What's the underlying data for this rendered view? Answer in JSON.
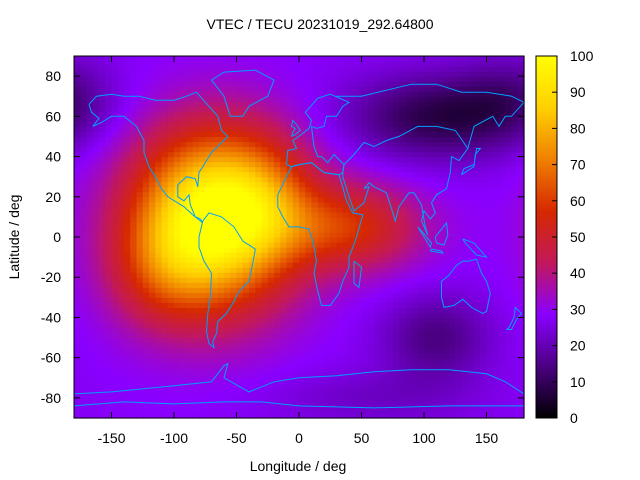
{
  "chart_data": {
    "type": "heatmap",
    "title": "VTEC / TECU 20231019_292.64800",
    "xlabel": "Longitude / deg",
    "ylabel": "Latitude / deg",
    "xlim": [
      -180,
      180
    ],
    "ylim": [
      -90,
      90
    ],
    "x_ticks": [
      -150,
      -100,
      -50,
      0,
      50,
      100,
      150
    ],
    "y_ticks": [
      -80,
      -60,
      -40,
      -20,
      0,
      20,
      40,
      60,
      80
    ],
    "colorbar": {
      "range": [
        0,
        100
      ],
      "ticks": [
        0,
        10,
        20,
        30,
        40,
        50,
        60,
        70,
        80,
        90,
        100
      ],
      "palette": [
        "#000000",
        "#4b0082",
        "#8a00ff",
        "#c2185b",
        "#d62800",
        "#f08000",
        "#ffd000",
        "#ffff00"
      ]
    },
    "field": {
      "background": 28,
      "blobs": [
        {
          "lon": -70,
          "lat": 5,
          "slon": 45,
          "slat": 30,
          "amp": 62
        },
        {
          "lon": -60,
          "lat": 25,
          "slon": 45,
          "slat": 25,
          "amp": 18
        },
        {
          "lon": -25,
          "lat": 15,
          "slon": 25,
          "slat": 20,
          "amp": 12
        },
        {
          "lon": 40,
          "lat": 5,
          "slon": 40,
          "slat": 15,
          "amp": 28
        },
        {
          "lon": -110,
          "lat": -15,
          "slon": 30,
          "slat": 20,
          "amp": 15
        },
        {
          "lon": 110,
          "lat": 60,
          "slon": 50,
          "slat": 15,
          "amp": -20
        },
        {
          "lon": 110,
          "lat": -50,
          "slon": 30,
          "slat": 15,
          "amp": -14
        },
        {
          "lon": 170,
          "lat": 70,
          "slon": 30,
          "slat": 15,
          "amp": -10
        },
        {
          "lon": 60,
          "lat": -80,
          "slon": 60,
          "slat": 10,
          "amp": -6
        }
      ]
    },
    "overlay": "coastlines"
  },
  "coastline_color": "#00a0ff"
}
